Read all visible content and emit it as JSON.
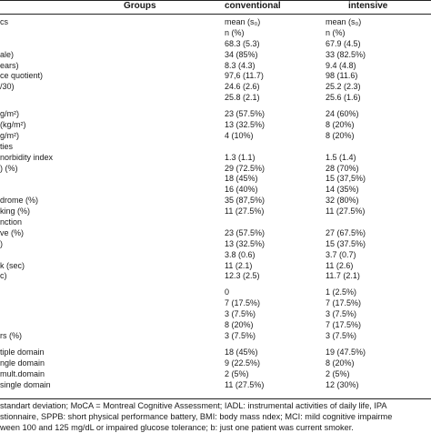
{
  "header": {
    "groups": "Groups",
    "conventional": "conventional",
    "intensive": "intensive"
  },
  "rows": [
    {
      "label": "cs",
      "conv": "mean (s₀)",
      "int": "mean (s₀)"
    },
    {
      "label": "",
      "conv": "n (%)",
      "int": "n (%)"
    },
    {
      "label": "",
      "conv": "68.3 (5.3)",
      "int": "67.9 (4.5)"
    },
    {
      "label": "ale)",
      "conv": "34 (85%)",
      "int": "33 (82.5%)"
    },
    {
      "label": "ears)",
      "conv": "8.3 (4.3)",
      "int": "9.4 (4.8)"
    },
    {
      "label": "ce quotient)",
      "conv": "97,6 (11.7)",
      "int": "98 (11.6)"
    },
    {
      "label": "/30)",
      "conv": "24.6 (2.6)",
      "int": "25.2 (2.3)"
    },
    {
      "label": "",
      "conv": "25.8 (2.1)",
      "int": "25.6 (1.6)"
    },
    {
      "gap": true
    },
    {
      "label": "g/m²)",
      "conv": "23 (57.5%)",
      "int": "24 (60%)"
    },
    {
      "label": "(kg/m²)",
      "conv": "13 (32.5%)",
      "int": "8 (20%)"
    },
    {
      "label": "g/m²)",
      "conv": "4 (10%)",
      "int": "8 (20%)"
    },
    {
      "label": "ties",
      "conv": "",
      "int": ""
    },
    {
      "label": "norbidity index",
      "conv": "1.3 (1.1)",
      "int": "1.5 (1.4)"
    },
    {
      "label": ") (%)",
      "conv": "29 (72.5%)",
      "int": "28 (70%)"
    },
    {
      "label": "",
      "conv": "18 (45%)",
      "int": "15 (37,5%)"
    },
    {
      "label": "",
      "conv": "16 (40%)",
      "int": "14 (35%)"
    },
    {
      "label": "drome (%)",
      "conv": "35 (87,5%)",
      "int": "32 (80%)"
    },
    {
      "label": "king (%)",
      "conv": "11 (27.5%)",
      "int": "11 (27.5%)"
    },
    {
      "label": "nction",
      "conv": "",
      "int": ""
    },
    {
      "label": "ve (%)",
      "conv": "23 (57.5%)",
      "int": "27 (67.5%)"
    },
    {
      "label": ")",
      "conv": "13 (32.5%)",
      "int": "15 (37.5%)"
    },
    {
      "label": "",
      "conv": "3.8 (0.6)",
      "int": "3.7 (0.7)"
    },
    {
      "label": "k (sec)",
      "conv": "11 (2.1)",
      "int": "11 (2.6)"
    },
    {
      "label": "c)",
      "conv": "12.3 (2.5)",
      "int": "11.7 (2.1)"
    },
    {
      "gap": true
    },
    {
      "label": "",
      "conv": "0",
      "int": "1 (2.5%)"
    },
    {
      "label": "",
      "conv": "7 (17.5%)",
      "int": "7 (17.5%)"
    },
    {
      "label": "",
      "conv": "3 (7.5%)",
      "int": "3 (7.5%)"
    },
    {
      "label": "",
      "conv": "8 (20%)",
      "int": "7 (17.5%)"
    },
    {
      "label": "rs (%)",
      "conv": "3 (7.5%)",
      "int": "3 (7.5%)"
    },
    {
      "gap": true
    },
    {
      "label": "tiple domain",
      "conv": "18 (45%)",
      "int": "19 (47.5%)"
    },
    {
      "label": "ngle domain",
      "conv": "9 (22.5%)",
      "int": "8 (20%)"
    },
    {
      "label": "mult.domain",
      "conv": "2 (5%)",
      "int": "2 (5%)"
    },
    {
      "label": "single domain",
      "conv": "11 (27.5%)",
      "int": "12 (30%)"
    }
  ],
  "footnotes": [
    "standart deviation; MoCA = Montreal Cognitive Assessment; IADL: instrumental activities of daily life, IPA",
    "stionnaire, SPPB: short physical performance battery, BMI: body mass ndex; MCI: mild cognitive impairme",
    "ween 100 and 125 mg/dL or impaired glucose tolerance; b: just one patient was current smoker."
  ]
}
